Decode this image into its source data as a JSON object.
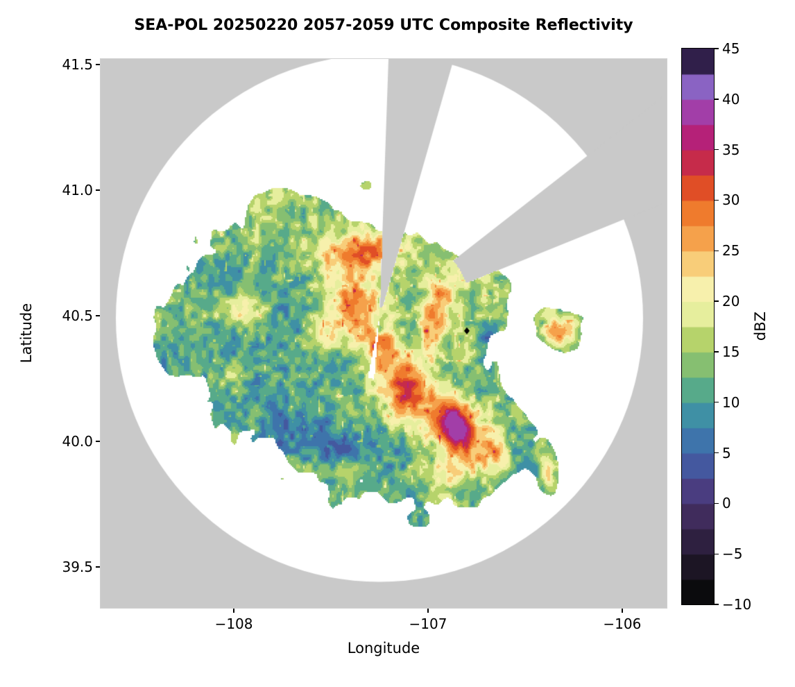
{
  "chart_data": {
    "type": "heatmap",
    "title": "SEA-POL 20250220 2057-2059 UTC Composite Reflectivity",
    "xlabel": "Longitude",
    "ylabel": "Latitude",
    "grid": false,
    "legend_position": "none",
    "xlim": [
      -108.686,
      -105.771
    ],
    "ylim": [
      39.337,
      41.522
    ],
    "xticks": {
      "values": [
        -108,
        -107,
        -106
      ],
      "labels": [
        "−108",
        "−107",
        "−106"
      ]
    },
    "yticks": {
      "values": [
        39.5,
        40.0,
        40.5,
        41.0,
        41.5
      ],
      "labels": [
        "39.5",
        "40.0",
        "40.5",
        "41.0",
        "41.5"
      ]
    },
    "colorbar": {
      "label": "dBZ",
      "min": -10,
      "max": 45,
      "step": 2.5,
      "tick_values": [
        -10,
        -5,
        0,
        5,
        10,
        15,
        20,
        25,
        30,
        35,
        40,
        45
      ],
      "tick_labels": [
        "−10",
        "−5",
        "0",
        "5",
        "10",
        "15",
        "20",
        "25",
        "30",
        "35",
        "40",
        "45"
      ],
      "stops": [
        {
          "v": -10.0,
          "c": "#0b0b0d"
        },
        {
          "v": -7.5,
          "c": "#1c1524"
        },
        {
          "v": -5.0,
          "c": "#2e2040"
        },
        {
          "v": -2.5,
          "c": "#402c5c"
        },
        {
          "v": 0.0,
          "c": "#4a3d80"
        },
        {
          "v": 2.5,
          "c": "#44589f"
        },
        {
          "v": 5.0,
          "c": "#3e74ab"
        },
        {
          "v": 7.5,
          "c": "#3f90a5"
        },
        {
          "v": 10.0,
          "c": "#57aa8a"
        },
        {
          "v": 12.5,
          "c": "#86bf71"
        },
        {
          "v": 15.0,
          "c": "#b6d36b"
        },
        {
          "v": 17.5,
          "c": "#e6ee9d"
        },
        {
          "v": 20.0,
          "c": "#f7f0ac"
        },
        {
          "v": 22.5,
          "c": "#f8cd79"
        },
        {
          "v": 25.0,
          "c": "#f5a14b"
        },
        {
          "v": 27.5,
          "c": "#ef7b2d"
        },
        {
          "v": 30.0,
          "c": "#e04e26"
        },
        {
          "v": 32.5,
          "c": "#c62b4a"
        },
        {
          "v": 35.0,
          "c": "#b52178"
        },
        {
          "v": 37.5,
          "c": "#a23ea8"
        },
        {
          "v": 40.0,
          "c": "#8a63c3"
        },
        {
          "v": 42.5,
          "c": "#301f4a"
        }
      ]
    },
    "radar": {
      "center_lon": -107.25,
      "center_lat": 40.49,
      "radius_px": 380,
      "coverage_color": "#ffffff",
      "nodata_color": "#c9c9c9",
      "sectors": [
        {
          "az0": 2,
          "az1": 16,
          "r0": 15,
          "r1": 2000,
          "type": "nodata"
        },
        {
          "az0": 52,
          "az1": 68,
          "r0": 135,
          "r1": 2000,
          "type": "nodata"
        },
        {
          "az0": 185,
          "az1": 191,
          "r0": 4,
          "r1": 88,
          "type": "empty"
        }
      ]
    },
    "marker": {
      "lon": -106.8,
      "lat": 40.44,
      "color": "#000000",
      "shape": "diamond"
    },
    "field": {
      "seed": 7,
      "base": 14,
      "coarse_amp": 6,
      "fine_amp": 4.5,
      "mask_threshold": 0.55,
      "mask_noise_amp": 0.35,
      "mask_blobs": [
        {
          "x": -107.78,
          "y": 40.62,
          "sx": 0.28,
          "sy": 0.2,
          "a": 1.0
        },
        {
          "x": -107.95,
          "y": 40.38,
          "sx": 0.3,
          "sy": 0.2,
          "a": 0.9
        },
        {
          "x": -107.45,
          "y": 40.5,
          "sx": 0.28,
          "sy": 0.24,
          "a": 1.1
        },
        {
          "x": -107.35,
          "y": 40.12,
          "sx": 0.38,
          "sy": 0.26,
          "a": 1.0
        },
        {
          "x": -106.95,
          "y": 40.38,
          "sx": 0.22,
          "sy": 0.24,
          "a": 0.9
        },
        {
          "x": -106.85,
          "y": 39.93,
          "sx": 0.22,
          "sy": 0.16,
          "a": 0.85
        },
        {
          "x": -107.78,
          "y": 40.93,
          "sx": 0.1,
          "sy": 0.06,
          "a": 0.75
        },
        {
          "x": -107.6,
          "y": 40.82,
          "sx": 0.12,
          "sy": 0.08,
          "a": 0.7
        },
        {
          "x": -107.15,
          "y": 40.68,
          "sx": 0.16,
          "sy": 0.12,
          "a": 0.85
        },
        {
          "x": -106.7,
          "y": 40.62,
          "sx": 0.1,
          "sy": 0.09,
          "a": 0.7
        },
        {
          "x": -106.32,
          "y": 40.44,
          "sx": 0.1,
          "sy": 0.065,
          "a": 0.95
        },
        {
          "x": -106.38,
          "y": 39.88,
          "sx": 0.055,
          "sy": 0.1,
          "a": 0.85
        },
        {
          "x": -106.24,
          "y": 39.66,
          "sx": 0.05,
          "sy": 0.035,
          "a": 0.6
        },
        {
          "x": -107.05,
          "y": 39.68,
          "sx": 0.04,
          "sy": 0.03,
          "a": 0.55
        },
        {
          "x": -107.18,
          "y": 39.83,
          "sx": 0.05,
          "sy": 0.04,
          "a": 0.6
        },
        {
          "x": -106.6,
          "y": 40.05,
          "sx": 0.12,
          "sy": 0.12,
          "a": 0.6
        },
        {
          "x": -108.25,
          "y": 40.45,
          "sx": 0.08,
          "sy": 0.08,
          "a": 0.6
        },
        {
          "x": -107.32,
          "y": 41.02,
          "sx": 0.022,
          "sy": 0.013,
          "a": 0.55
        },
        {
          "x": -106.67,
          "y": 40.57,
          "sx": 0.035,
          "sy": 0.03,
          "a": 0.55
        },
        {
          "x": -106.6,
          "y": 40.62,
          "sx": 0.022,
          "sy": 0.02,
          "a": 0.5
        }
      ],
      "value_blobs": [
        {
          "x": -107.38,
          "y": 40.52,
          "sx": 0.07,
          "sy": 0.1,
          "a": 13
        },
        {
          "x": -107.25,
          "y": 40.38,
          "sx": 0.06,
          "sy": 0.09,
          "a": 15
        },
        {
          "x": -107.12,
          "y": 40.22,
          "sx": 0.07,
          "sy": 0.09,
          "a": 16
        },
        {
          "x": -106.95,
          "y": 40.1,
          "sx": 0.09,
          "sy": 0.08,
          "a": 14
        },
        {
          "x": -106.85,
          "y": 40.08,
          "sx": 0.06,
          "sy": 0.07,
          "a": 15
        },
        {
          "x": -106.8,
          "y": 40.0,
          "sx": 0.08,
          "sy": 0.07,
          "a": 12
        },
        {
          "x": -106.65,
          "y": 39.95,
          "sx": 0.05,
          "sy": 0.06,
          "a": 10
        },
        {
          "x": -107.28,
          "y": 40.76,
          "sx": 0.1,
          "sy": 0.05,
          "a": 12
        },
        {
          "x": -107.45,
          "y": 40.73,
          "sx": 0.1,
          "sy": 0.05,
          "a": 8
        },
        {
          "x": -107.95,
          "y": 40.51,
          "sx": 0.12,
          "sy": 0.04,
          "a": 8
        },
        {
          "x": -106.98,
          "y": 40.45,
          "sx": 0.05,
          "sy": 0.08,
          "a": 14
        },
        {
          "x": -106.93,
          "y": 40.58,
          "sx": 0.04,
          "sy": 0.05,
          "a": 12
        },
        {
          "x": -106.32,
          "y": 40.44,
          "sx": 0.055,
          "sy": 0.04,
          "a": 14
        },
        {
          "x": -106.38,
          "y": 39.9,
          "sx": 0.035,
          "sy": 0.06,
          "a": 11
        },
        {
          "x": -106.9,
          "y": 39.87,
          "sx": 0.12,
          "sy": 0.05,
          "a": 7
        },
        {
          "x": -108.0,
          "y": 40.27,
          "sx": 0.06,
          "sy": 0.05,
          "a": 7
        },
        {
          "x": -107.55,
          "y": 40.4,
          "sx": 0.05,
          "sy": 0.05,
          "a": 6
        },
        {
          "x": -107.62,
          "y": 40.04,
          "sx": 0.16,
          "sy": 0.07,
          "a": -7
        },
        {
          "x": -107.42,
          "y": 40.3,
          "sx": 0.1,
          "sy": 0.08,
          "a": -5
        },
        {
          "x": -107.72,
          "y": 40.55,
          "sx": 0.08,
          "sy": 0.05,
          "a": -4
        },
        {
          "x": -106.7,
          "y": 40.42,
          "sx": 0.04,
          "sy": 0.05,
          "a": -6
        },
        {
          "x": -107.24,
          "y": 40.46,
          "sx": 0.025,
          "sy": 0.03,
          "a": -10
        },
        {
          "x": -107.45,
          "y": 39.98,
          "sx": 0.08,
          "sy": 0.05,
          "a": -6
        }
      ]
    }
  }
}
